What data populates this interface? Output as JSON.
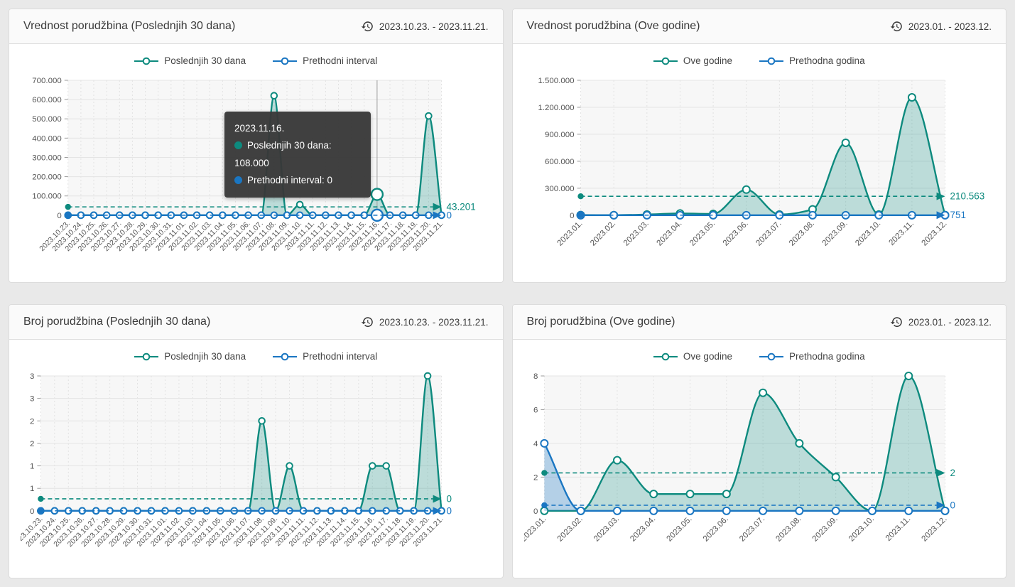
{
  "colors": {
    "teal": "#0d8a7e",
    "teal_fill": "rgba(13,138,126,0.25)",
    "blue": "#1a76c2",
    "blue_fill": "rgba(26,118,194,0.30)",
    "tooltip_bg": "#383838",
    "hover_line": "#9e9e9e"
  },
  "icons": {
    "date_range": "history-icon"
  },
  "panels": [
    {
      "title": "Vrednost porudžbina (Poslednjih 30 dana)",
      "date_range": "2023.10.23. - 2023.11.21.",
      "tooltip": {
        "date": "2023.11.16.",
        "rows": [
          {
            "color": "teal",
            "text": "Poslednjih 30 dana: 108.000"
          },
          {
            "color": "blue",
            "text": "Prethodni interval: 0"
          }
        ]
      }
    },
    {
      "title": "Vrednost porudžbina (Ove godine)",
      "date_range": "2023.01. - 2023.12."
    },
    {
      "title": "Broj porudžbina (Poslednjih 30 dana)",
      "date_range": "2023.10.23. - 2023.11.21."
    },
    {
      "title": "Broj porudžbina (Ove godine)",
      "date_range": "2023.01. - 2023.12."
    }
  ],
  "chart_data": [
    {
      "type": "area",
      "title": "Vrednost porudžbina (Poslednjih 30 dana)",
      "categories": [
        "2023.10.23.",
        "2023.10.24.",
        "2023.10.25.",
        "2023.10.26.",
        "2023.10.27.",
        "2023.10.28.",
        "2023.10.29.",
        "2023.10.30.",
        "2023.10.31.",
        "2023.11.01.",
        "2023.11.02.",
        "2023.11.03.",
        "2023.11.04.",
        "2023.11.05.",
        "2023.11.06.",
        "2023.11.07.",
        "2023.11.08.",
        "2023.11.09.",
        "2023.11.10.",
        "2023.11.11.",
        "2023.11.12.",
        "2023.11.13.",
        "2023.11.14.",
        "2023.11.15.",
        "2023.11.16.",
        "2023.11.17.",
        "2023.11.18.",
        "2023.11.19.",
        "2023.11.20.",
        "2023.11.21."
      ],
      "series": [
        {
          "name": "Poslednjih 30 dana",
          "color": "teal",
          "values": [
            0,
            0,
            0,
            0,
            0,
            0,
            0,
            0,
            0,
            0,
            0,
            0,
            0,
            0,
            0,
            0,
            620000,
            0,
            55000,
            0,
            0,
            0,
            0,
            0,
            108000,
            0,
            0,
            0,
            515000,
            0
          ],
          "avg_value": 43201,
          "avg_label": "43.201"
        },
        {
          "name": "Prethodni interval",
          "color": "blue",
          "values": [
            0,
            0,
            0,
            0,
            0,
            0,
            0,
            0,
            0,
            0,
            0,
            0,
            0,
            0,
            0,
            0,
            0,
            0,
            0,
            0,
            0,
            0,
            0,
            0,
            0,
            0,
            0,
            0,
            0,
            0
          ],
          "avg_value": 0,
          "avg_label": "0"
        }
      ],
      "ylim": [
        0,
        700000
      ],
      "ytick_values": [
        700000,
        600000,
        500000,
        400000,
        300000,
        200000,
        100000,
        0
      ],
      "ytick_labels": [
        "700.000",
        "600.000",
        "500.000",
        "400.000",
        "300.000",
        "200.000",
        "100.000",
        "0"
      ],
      "grid": true,
      "legend_position": "top",
      "hover_index": 24
    },
    {
      "type": "area",
      "title": "Vrednost porudžbina (Ove godine)",
      "categories": [
        "2023.01.",
        "2023.02.",
        "2023.03.",
        "2023.04.",
        "2023.05.",
        "2023.06.",
        "2023.07.",
        "2023.08.",
        "2023.09.",
        "2023.10.",
        "2023.11.",
        "2023.12."
      ],
      "series": [
        {
          "name": "Ove godine",
          "color": "teal",
          "values": [
            2000,
            1000,
            8000,
            20000,
            15000,
            285000,
            8000,
            65000,
            805000,
            8000,
            1310000,
            2000
          ],
          "avg_value": 210563,
          "avg_label": "210.563"
        },
        {
          "name": "Prethodna godina",
          "color": "blue",
          "values": [
            0,
            0,
            0,
            0,
            0,
            0,
            0,
            0,
            0,
            0,
            0,
            0
          ],
          "avg_value": 751,
          "avg_label": "751"
        }
      ],
      "ylim": [
        0,
        1500000
      ],
      "ytick_values": [
        1500000,
        1200000,
        900000,
        600000,
        300000,
        0
      ],
      "ytick_labels": [
        "1.500.000",
        "1.200.000",
        "900.000",
        "600.000",
        "300.000",
        "0"
      ],
      "grid": true,
      "legend_position": "top"
    },
    {
      "type": "area",
      "title": "Broj porudžbina (Poslednjih 30 dana)",
      "categories": [
        "2023.10.23.",
        "2023.10.24.",
        "2023.10.25.",
        "2023.10.26.",
        "2023.10.27.",
        "2023.10.28.",
        "2023.10.29.",
        "2023.10.30.",
        "2023.10.31.",
        "2023.11.01.",
        "2023.11.02.",
        "2023.11.03.",
        "2023.11.04.",
        "2023.11.05.",
        "2023.11.06.",
        "2023.11.07.",
        "2023.11.08.",
        "2023.11.09.",
        "2023.11.10.",
        "2023.11.11.",
        "2023.11.12.",
        "2023.11.13.",
        "2023.11.14.",
        "2023.11.15.",
        "2023.11.16.",
        "2023.11.17.",
        "2023.11.18.",
        "2023.11.19.",
        "2023.11.20.",
        "2023.11.21."
      ],
      "series": [
        {
          "name": "Poslednjih 30 dana",
          "color": "teal",
          "values": [
            0,
            0,
            0,
            0,
            0,
            0,
            0,
            0,
            0,
            0,
            0,
            0,
            0,
            0,
            0,
            0,
            2,
            0,
            1,
            0,
            0,
            0,
            0,
            0,
            1,
            1,
            0,
            0,
            3,
            0
          ],
          "avg_value": 0.267,
          "avg_label": "0"
        },
        {
          "name": "Prethodni interval",
          "color": "blue",
          "values": [
            0,
            0,
            0,
            0,
            0,
            0,
            0,
            0,
            0,
            0,
            0,
            0,
            0,
            0,
            0,
            0,
            0,
            0,
            0,
            0,
            0,
            0,
            0,
            0,
            0,
            0,
            0,
            0,
            0,
            0
          ],
          "avg_value": 0,
          "avg_label": "0"
        }
      ],
      "ylim": [
        0,
        3
      ],
      "ytick_values": [
        3,
        2.5,
        2,
        1.5,
        1,
        0.5,
        0
      ],
      "ytick_labels": [
        "3",
        "3",
        "2",
        "2",
        "1",
        "1",
        "0"
      ],
      "grid": true,
      "legend_position": "top"
    },
    {
      "type": "area",
      "title": "Broj porudžbina (Ove godine)",
      "categories": [
        "2023.01.",
        "2023.02.",
        "2023.03.",
        "2023.04.",
        "2023.05.",
        "2023.06.",
        "2023.07.",
        "2023.08.",
        "2023.09.",
        "2023.10.",
        "2023.11.",
        "2023.12."
      ],
      "series": [
        {
          "name": "Ove godine",
          "color": "teal",
          "values": [
            0,
            0,
            3,
            1,
            1,
            1,
            7,
            4,
            2,
            0,
            8,
            0
          ],
          "avg_value": 2.25,
          "avg_label": "2"
        },
        {
          "name": "Prethodna godina",
          "color": "blue",
          "values": [
            4,
            0,
            0,
            0,
            0,
            0,
            0,
            0,
            0,
            0,
            0,
            0
          ],
          "avg_value": 0.333,
          "avg_label": "0"
        }
      ],
      "ylim": [
        0,
        8
      ],
      "ytick_values": [
        8,
        6,
        4,
        2,
        0
      ],
      "ytick_labels": [
        "8",
        "6",
        "4",
        "2",
        "0"
      ],
      "grid": true,
      "legend_position": "top"
    }
  ]
}
